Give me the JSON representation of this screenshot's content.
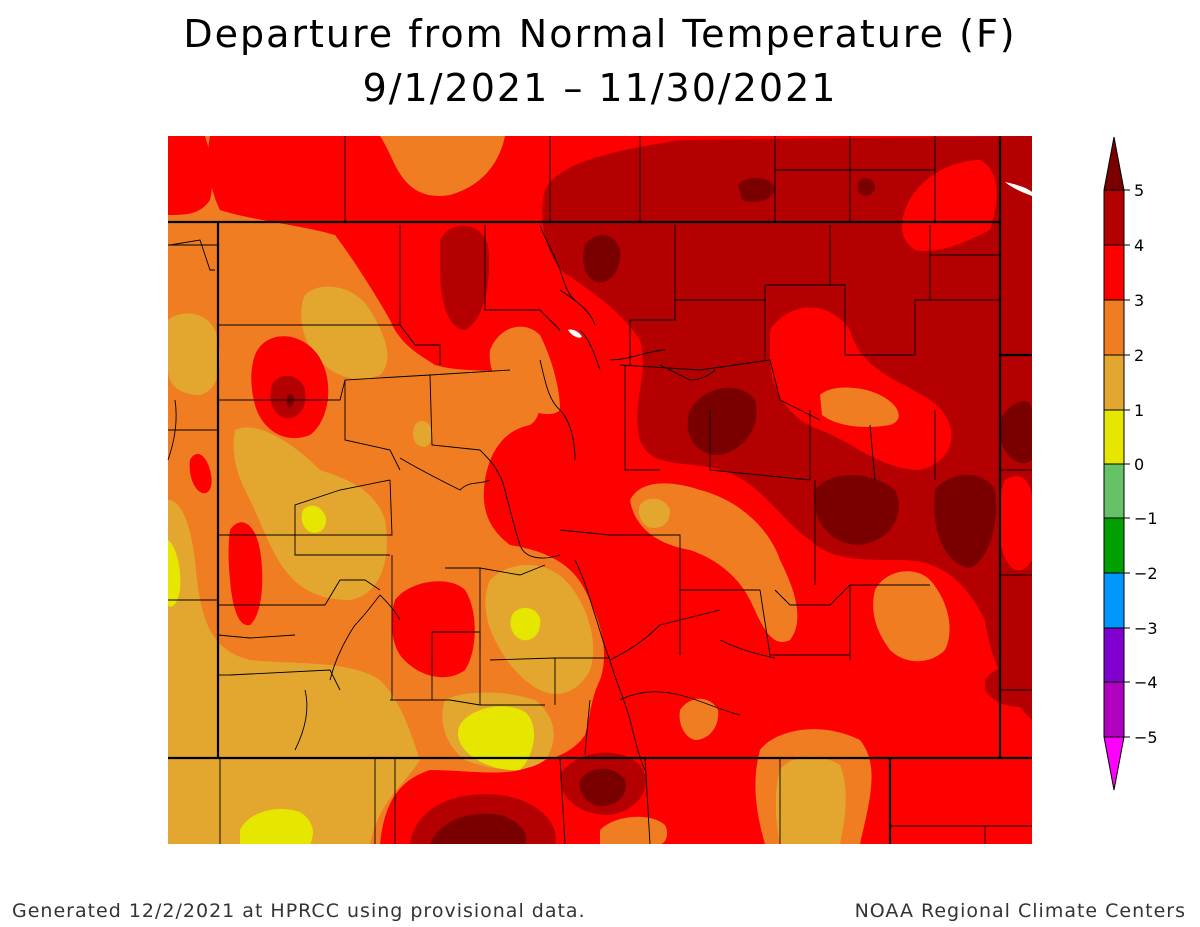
{
  "title": {
    "line1": "Departure from Normal Temperature (F)",
    "line2": "9/1/2021 – 11/30/2021"
  },
  "colorbar": {
    "labels": [
      "5",
      "4",
      "3",
      "2",
      "1",
      "0",
      "−1",
      "−2",
      "−3",
      "−4",
      "−5"
    ],
    "colors": {
      "gt5": "#7a0000",
      "4to5": "#b40000",
      "3to4": "#ff0000",
      "2to3": "#f07d22",
      "1to2": "#e3a72f",
      "0to1": "#e6e600",
      "-1to0": "#66c266",
      "-2to-1": "#00a000",
      "-3to-2": "#0098ff",
      "-4to-3": "#8000d0",
      "-5to-4": "#b000c0",
      "lt-5": "#ff00ff"
    }
  },
  "footer": {
    "left": "Generated 12/2/2021 at HPRCC using provisional data.",
    "right": "NOAA Regional Climate Centers"
  }
}
